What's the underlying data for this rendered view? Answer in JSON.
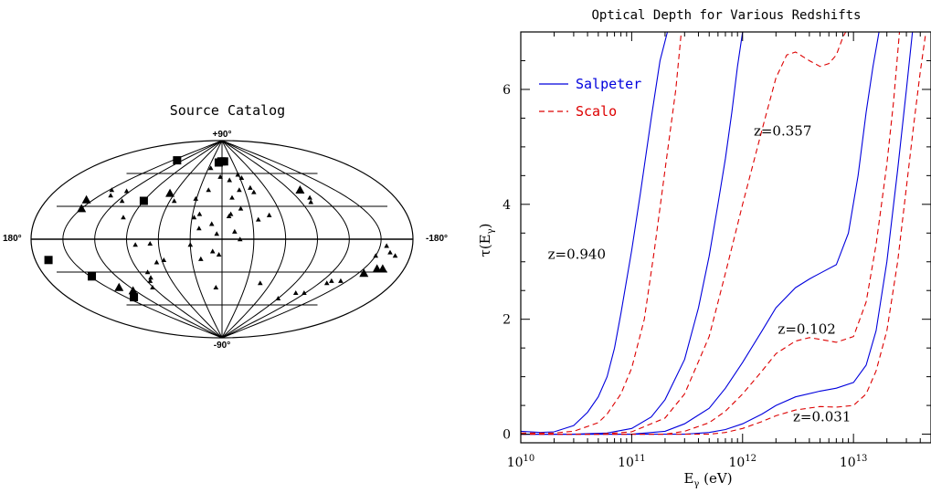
{
  "chart_data": [
    {
      "type": "scatter",
      "title": "Source Catalog",
      "projection": "aitoff (galactic)",
      "axis_labels": {
        "north": "+90°",
        "south": "-90°",
        "west": "180°",
        "east": "-180°"
      },
      "series": [
        {
          "marker": "square",
          "points": [
            [
              137,
              72
            ],
            [
              9,
              70
            ],
            [
              2,
              71
            ],
            [
              -6,
              71
            ],
            [
              90,
              35
            ],
            [
              148,
              -34
            ],
            [
              138,
              -53
            ],
            [
              173,
              -19
            ]
          ]
        },
        {
          "marker": "triangle-large",
          "points": [
            [
              158,
              36
            ],
            [
              150,
              28
            ],
            [
              66,
              42
            ],
            [
              -104,
              45
            ],
            [
              135,
              -44
            ],
            [
              123,
              -47
            ],
            [
              -170,
              -27
            ],
            [
              -164,
              -27
            ],
            [
              -156,
              -31
            ]
          ]
        },
        {
          "marker": "triangle-small",
          "points": [
            [
              147,
              45
            ],
            [
              137,
              40
            ],
            [
              125,
              44
            ],
            [
              115,
              35
            ],
            [
              99,
              20
            ],
            [
              25,
              65
            ],
            [
              3,
              57
            ],
            [
              -12,
              54
            ],
            [
              -29,
              59
            ],
            [
              -33,
              56
            ],
            [
              -39,
              47
            ],
            [
              -23,
              45
            ],
            [
              -41,
              43
            ],
            [
              -12,
              38
            ],
            [
              -20,
              28
            ],
            [
              55,
              35
            ],
            [
              31,
              37
            ],
            [
              18,
              45
            ],
            [
              23,
              23
            ],
            [
              10,
              14
            ],
            [
              -9,
              23
            ],
            [
              -7,
              21
            ],
            [
              -36,
              18
            ],
            [
              -48,
              22
            ],
            [
              -105,
              38
            ],
            [
              -101,
              34
            ],
            [
              28,
              20
            ],
            [
              22,
              10
            ],
            [
              5,
              5
            ],
            [
              -12,
              7
            ],
            [
              -17,
              0
            ],
            [
              82,
              -5
            ],
            [
              68,
              -4
            ],
            [
              30,
              -5
            ],
            [
              21,
              -18
            ],
            [
              9,
              -11
            ],
            [
              3,
              -14
            ],
            [
              58,
              -19
            ],
            [
              66,
              -21
            ],
            [
              81,
              -30
            ],
            [
              82,
              -35
            ],
            [
              86,
              -38
            ],
            [
              91,
              -44
            ],
            [
              -47,
              -40
            ],
            [
              -90,
              -54
            ],
            [
              -106,
              -49
            ],
            [
              -118,
              -49
            ],
            [
              -131,
              -38
            ],
            [
              -129,
              -40
            ],
            [
              -142,
              -38
            ],
            [
              -150,
              -15
            ],
            [
              -162,
              -12
            ],
            [
              -156,
              -6
            ],
            [
              -169,
              -15
            ],
            [
              8,
              -44
            ]
          ]
        }
      ]
    },
    {
      "type": "line",
      "title": "Optical Depth for Various Redshifts",
      "xlabel": "Eγ (eV)",
      "ylabel": "τ(Eγ)",
      "xscale": "log",
      "xlim": [
        10000000000.0,
        50000000000000.0
      ],
      "ylim": [
        -0.15,
        7
      ],
      "xticks": [
        {
          "v": 10000000000.0,
          "m": "10",
          "e": "10"
        },
        {
          "v": 100000000000.0,
          "m": "10",
          "e": "11"
        },
        {
          "v": 1000000000000.0,
          "m": "10",
          "e": "12"
        },
        {
          "v": 10000000000000.0,
          "m": "10",
          "e": "13"
        }
      ],
      "yticks": [
        0,
        2,
        4,
        6
      ],
      "legend": {
        "placement": "top-left",
        "entries": [
          {
            "label": "Salpeter",
            "color": "#0000dd",
            "style": "solid"
          },
          {
            "label": "Scalo",
            "color": "#dd0000",
            "style": "dashed"
          }
        ]
      },
      "annotations": [
        {
          "text": "z=0.940",
          "x": 32000000000.0,
          "y": 3.05
        },
        {
          "text": "z=0.357",
          "x": 2300000000000.0,
          "y": 5.2
        },
        {
          "text": "z=0.102",
          "x": 3800000000000.0,
          "y": 1.75
        },
        {
          "text": "z=0.031",
          "x": 5200000000000.0,
          "y": 0.22
        }
      ],
      "series": [
        {
          "name": "Salpeter",
          "z": "0.940",
          "color": "#0000dd",
          "style": "solid",
          "points": [
            [
              10000000000.0,
              0.05
            ],
            [
              15000000000.0,
              0.03
            ],
            [
              20000000000.0,
              0.04
            ],
            [
              30000000000.0,
              0.15
            ],
            [
              40000000000.0,
              0.38
            ],
            [
              50000000000.0,
              0.65
            ],
            [
              60000000000.0,
              1.0
            ],
            [
              70000000000.0,
              1.5
            ],
            [
              80000000000.0,
              2.1
            ],
            [
              100000000000.0,
              3.2
            ],
            [
              120000000000.0,
              4.2
            ],
            [
              150000000000.0,
              5.5
            ],
            [
              180000000000.0,
              6.5
            ],
            [
              210000000000.0,
              7.0
            ]
          ]
        },
        {
          "name": "Scalo",
          "z": "0.940",
          "color": "#dd0000",
          "style": "dashed",
          "points": [
            [
              10000000000.0,
              0.02
            ],
            [
              20000000000.0,
              0.02
            ],
            [
              30000000000.0,
              0.05
            ],
            [
              50000000000.0,
              0.2
            ],
            [
              60000000000.0,
              0.35
            ],
            [
              80000000000.0,
              0.7
            ],
            [
              100000000000.0,
              1.15
            ],
            [
              130000000000.0,
              2.0
            ],
            [
              160000000000.0,
              3.2
            ],
            [
              200000000000.0,
              4.6
            ],
            [
              250000000000.0,
              6.0
            ],
            [
              280000000000.0,
              7.0
            ]
          ]
        },
        {
          "name": "Salpeter",
          "z": "0.357",
          "color": "#0000dd",
          "style": "solid",
          "points": [
            [
              10000000000.0,
              0.0
            ],
            [
              30000000000.0,
              0.0
            ],
            [
              60000000000.0,
              0.02
            ],
            [
              100000000000.0,
              0.1
            ],
            [
              150000000000.0,
              0.3
            ],
            [
              200000000000.0,
              0.6
            ],
            [
              300000000000.0,
              1.3
            ],
            [
              400000000000.0,
              2.2
            ],
            [
              500000000000.0,
              3.1
            ],
            [
              600000000000.0,
              4.0
            ],
            [
              700000000000.0,
              4.8
            ],
            [
              800000000000.0,
              5.6
            ],
            [
              900000000000.0,
              6.4
            ],
            [
              1000000000000.0,
              7.0
            ]
          ]
        },
        {
          "name": "Scalo",
          "z": "0.357",
          "color": "#dd0000",
          "style": "dashed",
          "points": [
            [
              10000000000.0,
              0.0
            ],
            [
              50000000000.0,
              0.0
            ],
            [
              100000000000.0,
              0.04
            ],
            [
              200000000000.0,
              0.28
            ],
            [
              300000000000.0,
              0.7
            ],
            [
              500000000000.0,
              1.7
            ],
            [
              700000000000.0,
              2.8
            ],
            [
              1000000000000.0,
              4.0
            ],
            [
              1500000000000.0,
              5.3
            ],
            [
              2000000000000.0,
              6.2
            ],
            [
              2500000000000.0,
              6.6
            ],
            [
              3000000000000.0,
              6.65
            ],
            [
              4000000000000.0,
              6.5
            ],
            [
              5000000000000.0,
              6.4
            ],
            [
              6000000000000.0,
              6.45
            ],
            [
              7000000000000.0,
              6.6
            ],
            [
              8000000000000.0,
              6.9
            ],
            [
              8500000000000.0,
              7.0
            ]
          ]
        },
        {
          "name": "Salpeter",
          "z": "0.102",
          "color": "#0000dd",
          "style": "solid",
          "points": [
            [
              10000000000.0,
              0.0
            ],
            [
              100000000000.0,
              0.0
            ],
            [
              200000000000.0,
              0.05
            ],
            [
              300000000000.0,
              0.18
            ],
            [
              500000000000.0,
              0.45
            ],
            [
              700000000000.0,
              0.8
            ],
            [
              1000000000000.0,
              1.25
            ],
            [
              1500000000000.0,
              1.8
            ],
            [
              2000000000000.0,
              2.2
            ],
            [
              3000000000000.0,
              2.55
            ],
            [
              4000000000000.0,
              2.7
            ],
            [
              5000000000000.0,
              2.8
            ],
            [
              7000000000000.0,
              2.95
            ],
            [
              9000000000000.0,
              3.5
            ],
            [
              11000000000000.0,
              4.5
            ],
            [
              13000000000000.0,
              5.6
            ],
            [
              15000000000000.0,
              6.4
            ],
            [
              17000000000000.0,
              7.0
            ]
          ]
        },
        {
          "name": "Scalo",
          "z": "0.102",
          "color": "#dd0000",
          "style": "dashed",
          "points": [
            [
              10000000000.0,
              0.0
            ],
            [
              200000000000.0,
              0.0
            ],
            [
              300000000000.0,
              0.05
            ],
            [
              500000000000.0,
              0.2
            ],
            [
              700000000000.0,
              0.4
            ],
            [
              1000000000000.0,
              0.7
            ],
            [
              1500000000000.0,
              1.1
            ],
            [
              2000000000000.0,
              1.4
            ],
            [
              3000000000000.0,
              1.62
            ],
            [
              4000000000000.0,
              1.68
            ],
            [
              5000000000000.0,
              1.65
            ],
            [
              7000000000000.0,
              1.6
            ],
            [
              10000000000000.0,
              1.7
            ],
            [
              13000000000000.0,
              2.3
            ],
            [
              16000000000000.0,
              3.3
            ],
            [
              20000000000000.0,
              4.7
            ],
            [
              23000000000000.0,
              5.8
            ],
            [
              26000000000000.0,
              7.0
            ]
          ]
        },
        {
          "name": "Salpeter",
          "z": "0.031",
          "color": "#0000dd",
          "style": "solid",
          "points": [
            [
              10000000000.0,
              0.0
            ],
            [
              300000000000.0,
              0.0
            ],
            [
              500000000000.0,
              0.03
            ],
            [
              700000000000.0,
              0.08
            ],
            [
              1000000000000.0,
              0.18
            ],
            [
              1500000000000.0,
              0.35
            ],
            [
              2000000000000.0,
              0.5
            ],
            [
              3000000000000.0,
              0.65
            ],
            [
              5000000000000.0,
              0.75
            ],
            [
              7000000000000.0,
              0.8
            ],
            [
              10000000000000.0,
              0.9
            ],
            [
              13000000000000.0,
              1.2
            ],
            [
              16000000000000.0,
              1.8
            ],
            [
              20000000000000.0,
              3.0
            ],
            [
              25000000000000.0,
              4.6
            ],
            [
              30000000000000.0,
              6.0
            ],
            [
              34000000000000.0,
              7.0
            ]
          ]
        },
        {
          "name": "Scalo",
          "z": "0.031",
          "color": "#dd0000",
          "style": "dashed",
          "points": [
            [
              10000000000.0,
              0.0
            ],
            [
              500000000000.0,
              0.0
            ],
            [
              700000000000.0,
              0.03
            ],
            [
              1000000000000.0,
              0.1
            ],
            [
              1500000000000.0,
              0.22
            ],
            [
              2000000000000.0,
              0.32
            ],
            [
              3000000000000.0,
              0.42
            ],
            [
              5000000000000.0,
              0.48
            ],
            [
              7000000000000.0,
              0.47
            ],
            [
              10000000000000.0,
              0.5
            ],
            [
              13000000000000.0,
              0.7
            ],
            [
              16000000000000.0,
              1.1
            ],
            [
              20000000000000.0,
              1.8
            ],
            [
              25000000000000.0,
              3.0
            ],
            [
              30000000000000.0,
              4.3
            ],
            [
              35000000000000.0,
              5.4
            ],
            [
              40000000000000.0,
              6.3
            ],
            [
              45000000000000.0,
              7.0
            ]
          ]
        }
      ]
    }
  ]
}
